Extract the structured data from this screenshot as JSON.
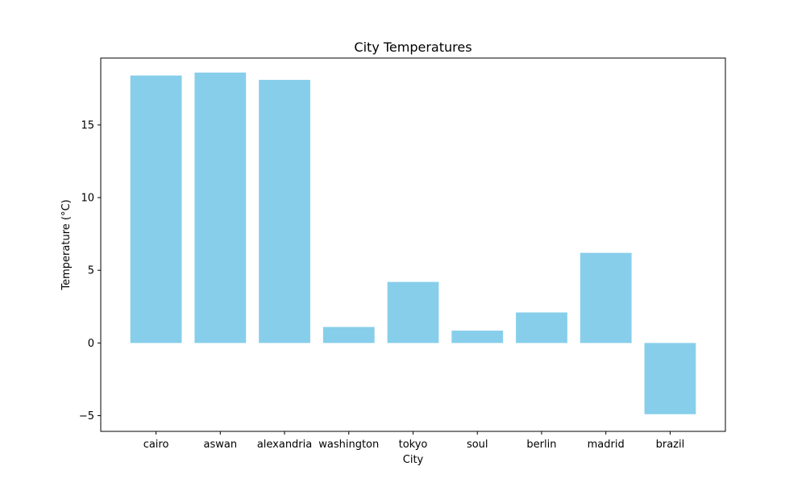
{
  "chart_data": {
    "type": "bar",
    "title": "City Temperatures",
    "xlabel": "City",
    "ylabel": "Temperature (°C)",
    "categories": [
      "cairo",
      "aswan",
      "alexandria",
      "washington",
      "tokyo",
      "soul",
      "berlin",
      "madrid",
      "brazil"
    ],
    "values": [
      18.4,
      18.6,
      18.1,
      1.1,
      4.2,
      0.85,
      2.1,
      6.2,
      -4.9
    ],
    "ylim": [
      -6.08,
      19.6
    ],
    "yticks": [
      -5,
      0,
      5,
      10,
      15
    ],
    "ytick_labels": [
      "−5",
      "0",
      "5",
      "10",
      "15"
    ],
    "bar_color": "#87ceeb",
    "grid": false,
    "legend": "none"
  }
}
